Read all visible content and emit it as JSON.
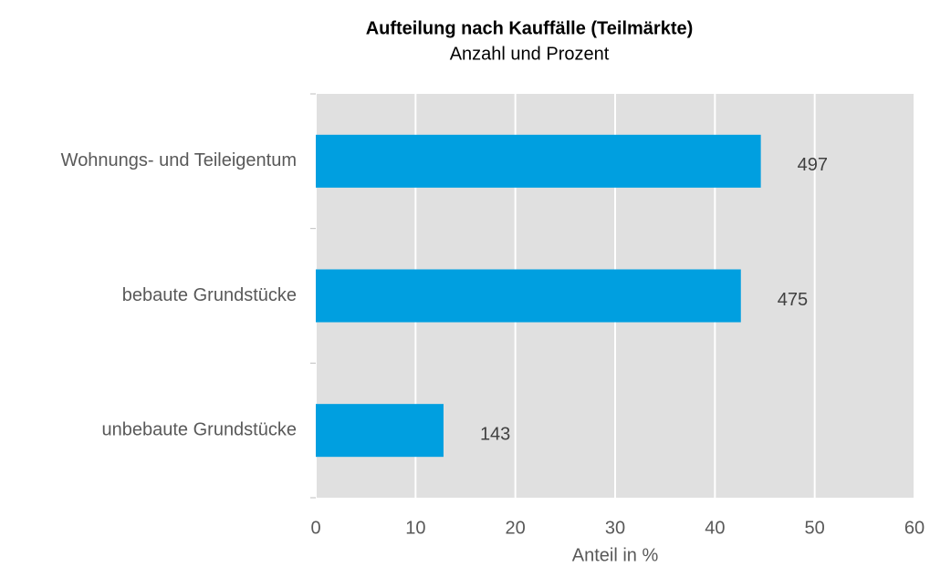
{
  "chart_data": {
    "type": "barh",
    "title": "Aufteilung nach Kauffälle (Teilmärkte)",
    "subtitle": "Anzahl und Prozent",
    "x_label": "Anteil in %",
    "categories": [
      "Wohnungs- und Teileigentum",
      "bebaute Grundstücke",
      "unbebaute Grundstücke"
    ],
    "values": [
      44.6,
      42.6,
      12.8
    ],
    "counts": [
      497,
      475,
      143
    ],
    "color": "#009fe0",
    "xlim": [
      0,
      60
    ],
    "xticks": [
      0,
      10,
      20,
      30,
      40,
      50,
      60
    ],
    "grid": true
  }
}
